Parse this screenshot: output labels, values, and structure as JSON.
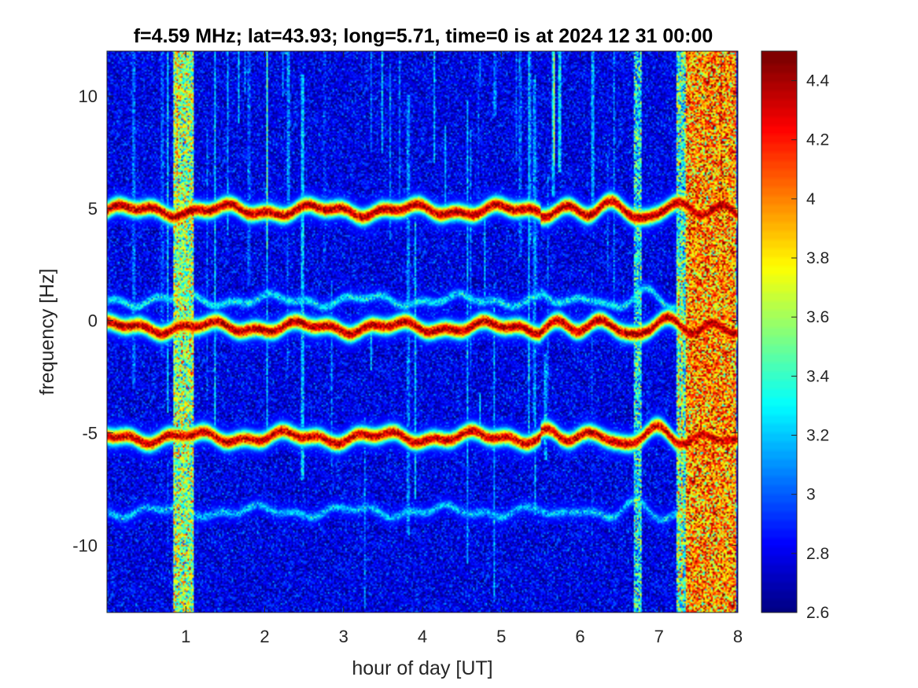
{
  "chart_data": {
    "type": "heatmap",
    "title": "f=4.59 MHz;  lat=43.93; long=5.71, time=0 is at 2024 12 31 00:00",
    "xlabel": "hour of day [UT]",
    "ylabel": "frequency [Hz]",
    "xlim": [
      0,
      8
    ],
    "ylim": [
      -13,
      12
    ],
    "x_ticks": [
      1,
      2,
      3,
      4,
      5,
      6,
      7,
      8
    ],
    "y_ticks": [
      -10,
      -5,
      0,
      5,
      10
    ],
    "colorbar": {
      "colormap": "jet",
      "range": [
        2.6,
        4.5
      ],
      "ticks": [
        2.6,
        2.8,
        3.0,
        3.2,
        3.4,
        3.6,
        3.8,
        4.0,
        4.2,
        4.4
      ],
      "tick_labels": [
        "2.6",
        "2.8",
        "3",
        "3.2",
        "3.4",
        "3.6",
        "3.8",
        "4",
        "4.2",
        "4.4"
      ]
    },
    "background_level": 2.8,
    "traces": [
      {
        "center_hz": 4.9,
        "peak_level": 4.45
      },
      {
        "center_hz": -0.3,
        "peak_level": 4.45
      },
      {
        "center_hz": -5.2,
        "peak_level": 4.4
      },
      {
        "center_hz": 0.9,
        "peak_level": 3.3
      },
      {
        "center_hz": -8.5,
        "peak_level": 3.2
      }
    ],
    "broadband_bands": [
      {
        "x_range": [
          0.85,
          1.1
        ],
        "level": 3.6
      },
      {
        "x_range": [
          6.68,
          6.78
        ],
        "level": 3.3
      },
      {
        "x_range": [
          7.22,
          7.35
        ],
        "level": 3.4
      },
      {
        "x_range": [
          7.35,
          7.97
        ],
        "level": 4.0
      }
    ],
    "grid": false
  },
  "colors": {
    "axis": "#262626",
    "title": "#000000",
    "background": "#ffffff"
  }
}
